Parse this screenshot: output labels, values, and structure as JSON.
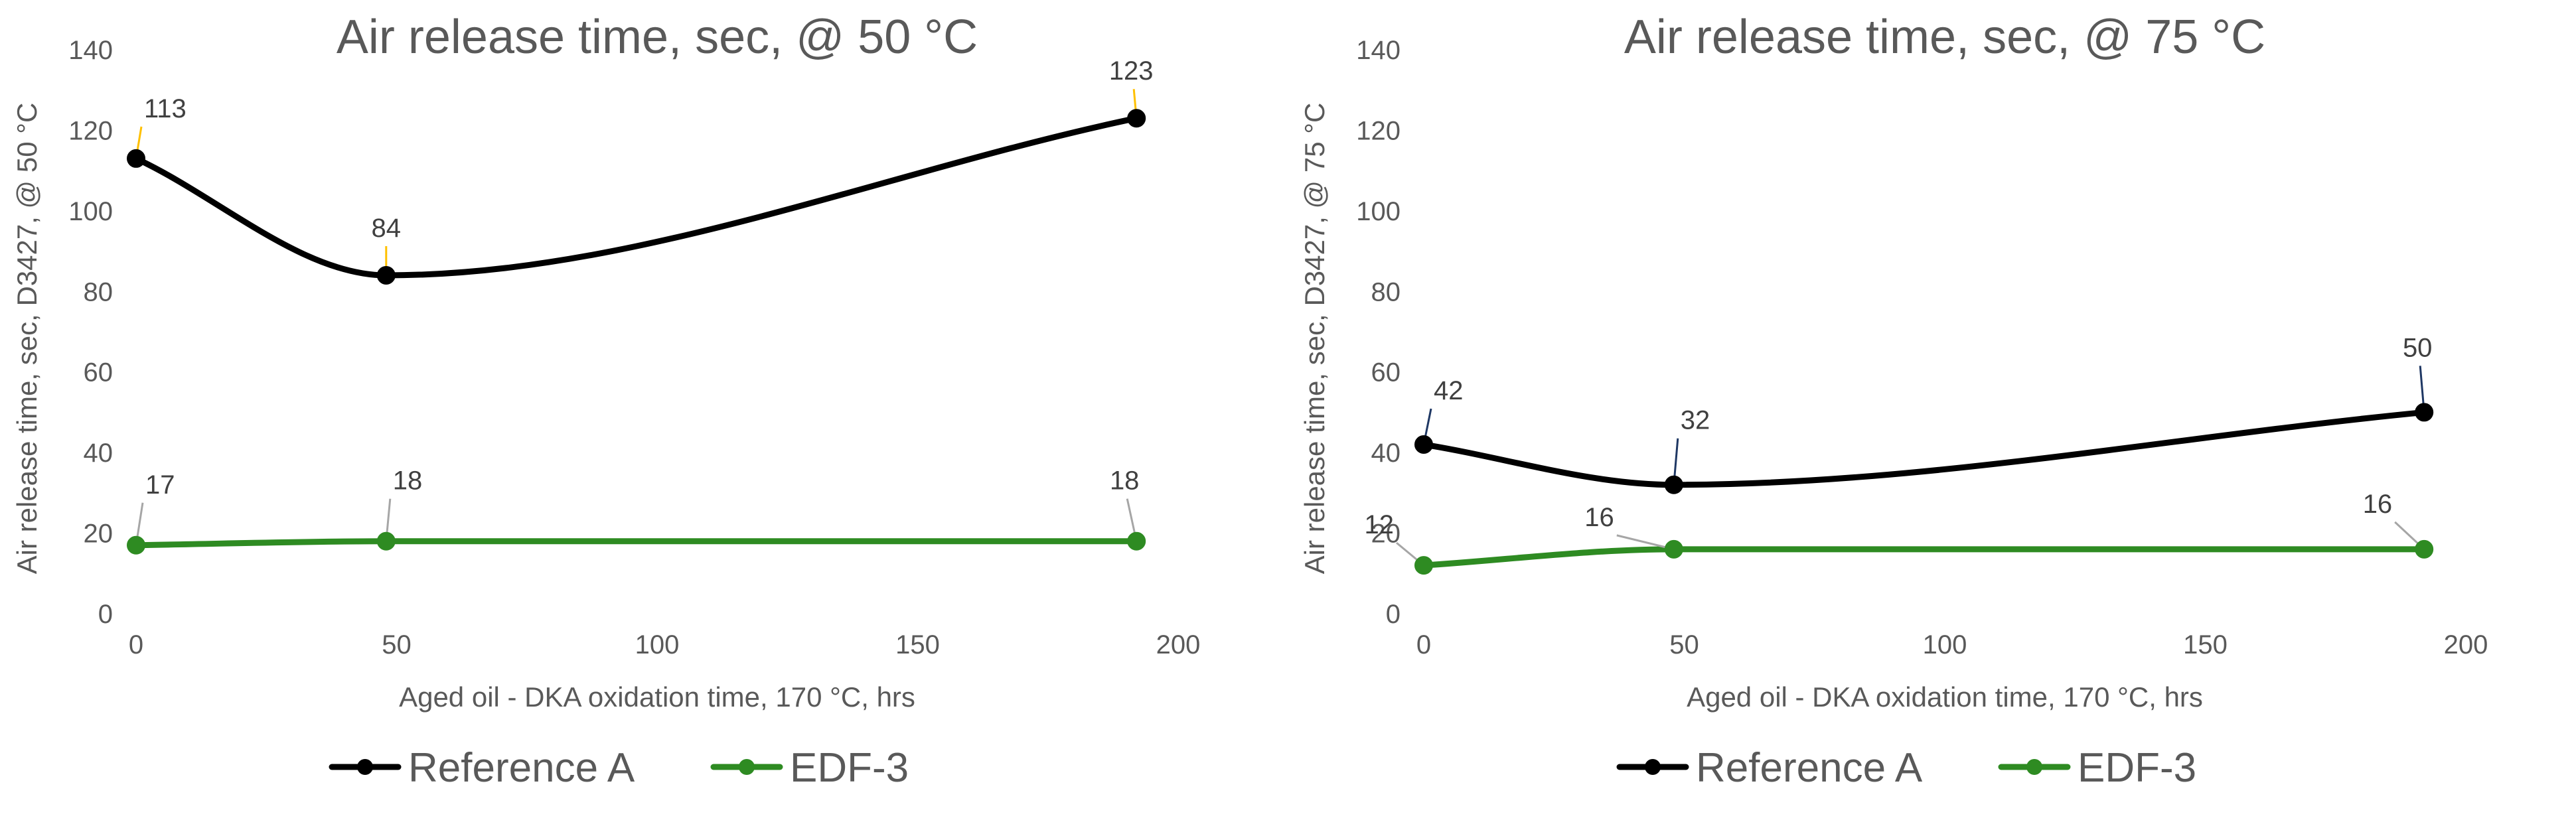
{
  "chart_data": [
    {
      "type": "line",
      "title": "Air release time, sec, @ 50 °C",
      "xlabel": "Aged oil - DKA oxidation time, 170 °C, hrs",
      "ylabel": "Air release time, sec, D3427, @ 50 °C",
      "xlim": [
        0,
        200
      ],
      "ylim": [
        0,
        140
      ],
      "xticks": [
        0,
        50,
        100,
        150,
        200
      ],
      "yticks": [
        0,
        20,
        40,
        60,
        80,
        100,
        120,
        140
      ],
      "smooth": true,
      "series": [
        {
          "name": "Reference A",
          "color": "#000000",
          "leader_color": "#FFC000",
          "x": [
            0,
            48,
            192
          ],
          "values": [
            113,
            84,
            123
          ],
          "labels": [
            "113",
            "84",
            "123"
          ]
        },
        {
          "name": "EDF-3",
          "color": "#2E8B22",
          "leader_color": "#A6A6A6",
          "x": [
            0,
            48,
            192
          ],
          "values": [
            17,
            18,
            18
          ],
          "labels": [
            "17",
            "18",
            "18"
          ]
        }
      ],
      "legend": [
        "Reference A",
        "EDF-3"
      ],
      "legend_position": "bottom"
    },
    {
      "type": "line",
      "title": "Air release time, sec, @ 75 °C",
      "xlabel": "Aged oil - DKA oxidation time, 170 °C, hrs",
      "ylabel": "Air release time, sec, D3427, @ 75 °C",
      "xlim": [
        0,
        200
      ],
      "ylim": [
        0,
        140
      ],
      "xticks": [
        0,
        50,
        100,
        150,
        200
      ],
      "yticks": [
        0,
        20,
        40,
        60,
        80,
        100,
        120,
        140
      ],
      "smooth": true,
      "series": [
        {
          "name": "Reference A",
          "color": "#000000",
          "leader_color": "#1F3864",
          "x": [
            0,
            48,
            192
          ],
          "values": [
            42,
            32,
            50
          ],
          "labels": [
            "42",
            "32",
            "50"
          ]
        },
        {
          "name": "EDF-3",
          "color": "#2E8B22",
          "leader_color": "#A6A6A6",
          "x": [
            0,
            48,
            192
          ],
          "values": [
            12,
            16,
            16
          ],
          "labels": [
            "12",
            "16",
            "16"
          ]
        }
      ],
      "legend": [
        "Reference A",
        "EDF-3"
      ],
      "legend_position": "bottom"
    }
  ]
}
